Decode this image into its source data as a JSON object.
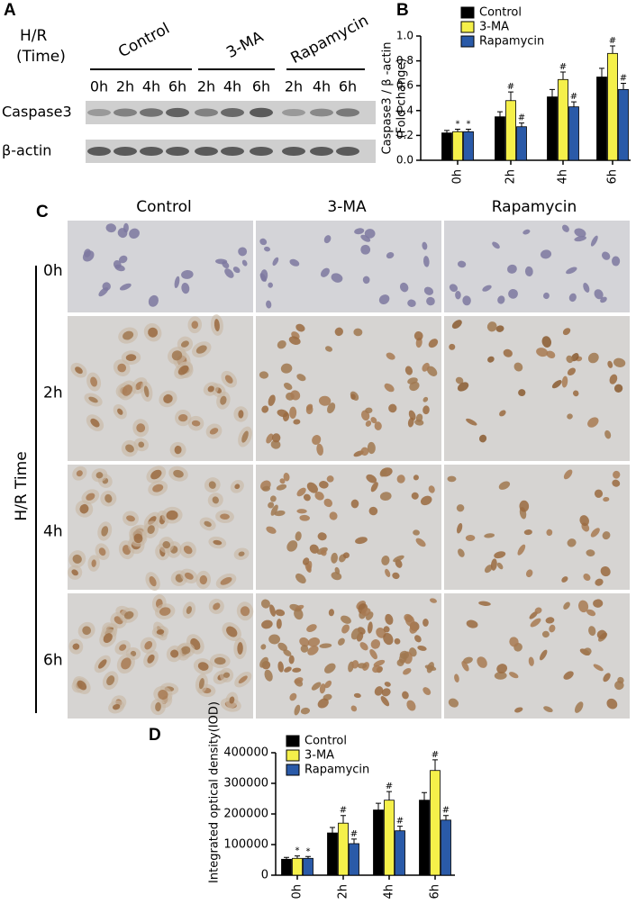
{
  "panel_a": {
    "label": "A",
    "hr": "H/R",
    "time": "(Time)",
    "groups": [
      "Control",
      "3-MA",
      "Rapamycin"
    ],
    "lanes": [
      "0h",
      "2h",
      "4h",
      "6h",
      "2h",
      "4h",
      "6h",
      "2h",
      "4h",
      "6h"
    ],
    "rows": [
      "Caspase3",
      "β-actin"
    ]
  },
  "chart_data": [
    {
      "panel_label": "B",
      "type": "bar",
      "categories": [
        "0h",
        "2h",
        "4h",
        "6h"
      ],
      "ylabel": [
        "Caspase3 / β -actin",
        "(Fold change)"
      ],
      "ylim": [
        0,
        1
      ],
      "yticks": [
        {
          "value": 0,
          "label": "0.0"
        },
        0.2,
        0.4,
        0.6,
        0.8,
        {
          "value": 1,
          "label": "1.0"
        }
      ],
      "series": [
        {
          "name": "Control",
          "color": "#000000",
          "values": [
            0.22,
            0.35,
            0.51,
            0.67
          ],
          "errors": [
            0.02,
            0.04,
            0.06,
            0.07
          ]
        },
        {
          "name": "3-MA",
          "color": "#f5f04a",
          "values": [
            0.23,
            0.48,
            0.65,
            0.86
          ],
          "errors": [
            0.02,
            0.07,
            0.06,
            0.06
          ],
          "markers": [
            "*",
            "#",
            "#",
            "#"
          ]
        },
        {
          "name": "Rapamycin",
          "color": "#2a5aa8",
          "values": [
            0.23,
            0.27,
            0.43,
            0.57
          ],
          "errors": [
            0.02,
            0.03,
            0.04,
            0.05
          ],
          "markers": [
            "*",
            "#",
            "#",
            "#"
          ]
        }
      ]
    },
    {
      "panel_label": "D",
      "type": "bar",
      "categories": [
        "0h",
        "2h",
        "4h",
        "6h"
      ],
      "ylabel": [
        "Integrated optical density(IOD)"
      ],
      "ylim": [
        0,
        400000
      ],
      "yticks": [
        0,
        100000,
        200000,
        300000,
        400000
      ],
      "series": [
        {
          "name": "Control",
          "color": "#000000",
          "values": [
            52000,
            138000,
            213000,
            245000
          ],
          "errors": [
            6000,
            18000,
            22000,
            25000
          ]
        },
        {
          "name": "3-MA",
          "color": "#f5f04a",
          "values": [
            55000,
            170000,
            245000,
            342000
          ],
          "errors": [
            8000,
            25000,
            28000,
            35000
          ],
          "markers": [
            "*",
            "#",
            "#",
            "#"
          ]
        },
        {
          "name": "Rapamycin",
          "color": "#2a5aa8",
          "values": [
            55000,
            103000,
            145000,
            180000
          ],
          "errors": [
            6000,
            15000,
            15000,
            15000
          ],
          "markers": [
            "*",
            "#",
            "#",
            "#"
          ]
        }
      ]
    }
  ],
  "panel_c": {
    "label": "C",
    "columns": [
      "Control",
      "3-MA",
      "Rapamycin"
    ],
    "rows": [
      "0h",
      "2h",
      "4h",
      "6h"
    ],
    "axis_label": "H/R Time"
  }
}
